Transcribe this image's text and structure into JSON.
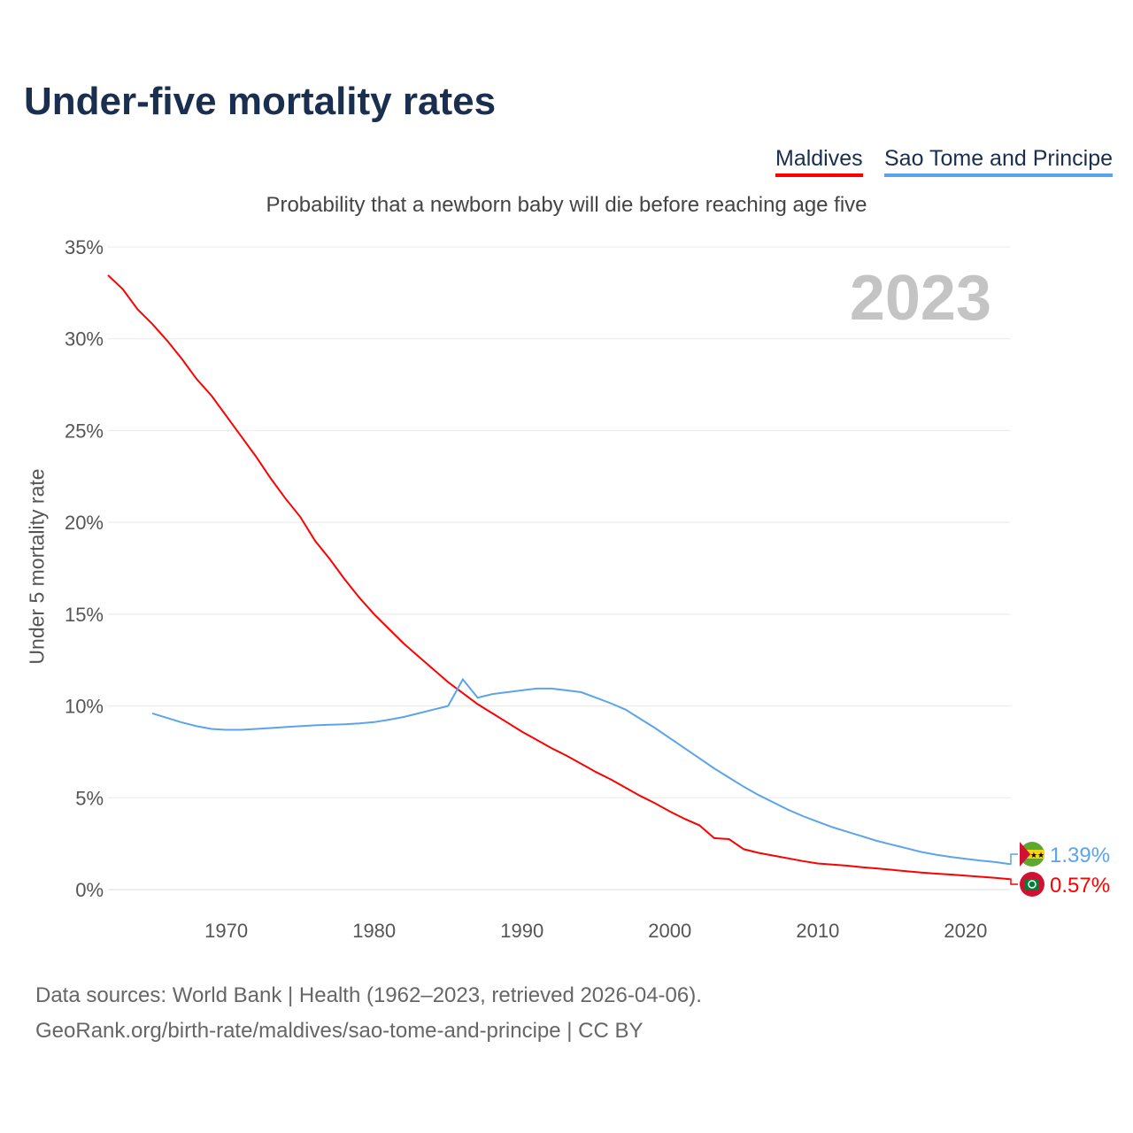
{
  "chart_data": {
    "type": "line",
    "title": "Under-five mortality rates",
    "subtitle": "Probability that a newborn baby will die before reaching age five",
    "ylabel": "Under 5 mortality rate",
    "xlabel": "",
    "year_label": "2023",
    "ylim": [
      0,
      35
    ],
    "yticks": [
      "0%",
      "5%",
      "10%",
      "15%",
      "20%",
      "25%",
      "30%",
      "35%"
    ],
    "xticks": [
      "1970",
      "1980",
      "1990",
      "2000",
      "2010",
      "2020"
    ],
    "xlim": [
      1962,
      2023
    ],
    "grid": true,
    "legend_position": "top-right",
    "series": [
      {
        "name": "Maldives",
        "color": "#ff0000",
        "end_label": "0.57%",
        "start_year": 1962,
        "values": [
          33.46,
          32.7,
          31.6,
          30.8,
          29.9,
          28.9,
          27.8,
          26.9,
          25.8,
          24.7,
          23.6,
          22.4,
          21.3,
          20.3,
          19.0,
          18.0,
          16.9,
          15.9,
          15.0,
          14.2,
          13.4,
          12.7,
          12.0,
          11.3,
          10.7,
          10.1,
          9.6,
          9.1,
          8.6,
          8.15,
          7.7,
          7.3,
          6.85,
          6.4,
          6.0,
          5.55,
          5.1,
          4.7,
          4.25,
          3.85,
          3.5,
          2.8,
          2.75,
          2.2,
          2.0,
          1.85,
          1.7,
          1.55,
          1.42,
          1.36,
          1.3,
          1.22,
          1.15,
          1.08,
          1.0,
          0.93,
          0.87,
          0.82,
          0.76,
          0.7,
          0.64,
          0.57
        ]
      },
      {
        "name": "Sao Tome and Principe",
        "color": "#5ba4ec",
        "end_label": "1.39%",
        "start_year": 1965,
        "values": [
          9.6,
          9.35,
          9.1,
          8.9,
          8.75,
          8.7,
          8.7,
          8.75,
          8.8,
          8.85,
          8.9,
          8.95,
          8.98,
          9.0,
          9.05,
          9.12,
          9.25,
          9.4,
          9.6,
          9.8,
          10.0,
          11.45,
          10.45,
          10.65,
          10.75,
          10.85,
          10.95,
          10.95,
          10.85,
          10.75,
          10.45,
          10.15,
          9.8,
          9.3,
          8.8,
          8.25,
          7.7,
          7.15,
          6.6,
          6.1,
          5.6,
          5.15,
          4.75,
          4.35,
          4.0,
          3.7,
          3.4,
          3.15,
          2.9,
          2.65,
          2.45,
          2.25,
          2.05,
          1.9,
          1.78,
          1.68,
          1.58,
          1.5,
          1.39
        ]
      }
    ]
  },
  "source_line1": "Data sources: World Bank | Health (1962–2023, retrieved 2026-04-06).",
  "source_line2": "GeoRank.org/birth-rate/maldives/sao-tome-and-principe | CC BY"
}
